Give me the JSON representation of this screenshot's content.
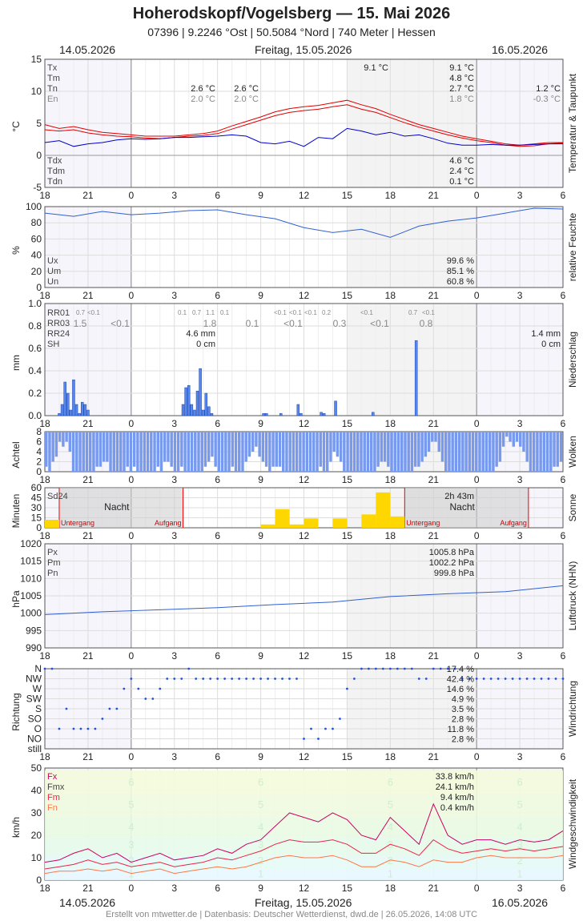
{
  "header": {
    "title": "Hoherodskopf/Vogelsberg  —  15. Mai 2026",
    "subtitle": "07396  |  9.2246 °Ost  |  50.5084 °Nord  |  740 Meter  |  Hessen",
    "date_left": "14.05.2026",
    "date_center": "Freitag, 15.05.2026",
    "date_right": "16.05.2026"
  },
  "footer": "Erstellt von mtwetter.de | Datenbasis: Deutscher Wetterdienst, dwd.de | 26.05.2026, 14:08 UTC",
  "x_ticks": [
    "18",
    "21",
    "0",
    "3",
    "6",
    "9",
    "12",
    "15",
    "18",
    "21",
    "0",
    "3",
    "6"
  ],
  "colors": {
    "tx": "#e00000",
    "td": "#0000cc",
    "hum": "#3060d0",
    "rain": "#5588ee",
    "cloud": "#7799ee",
    "sun": "#ffd700",
    "press": "#3060d0",
    "wind_dir": "#2050e0",
    "fx": "#cc0066",
    "fm": "#ee2244",
    "fn": "#ff7744"
  },
  "chart_data": [
    {
      "id": "temp",
      "type": "line",
      "ylabel": "°C",
      "side_label": "Temperatur & Taupunkt",
      "ylim": [
        -5,
        15
      ],
      "yticks": [
        "15",
        "10",
        "5",
        "0",
        "-5"
      ],
      "left_labels": [
        "Tx",
        "Tm",
        "Tn",
        "En"
      ],
      "left_labels_bottom": [
        "Tdx",
        "Tdm",
        "Tdn"
      ],
      "annotations": {
        "d1_tn": "2.6 °C",
        "d1_en": "2.0 °C",
        "d1b_tn": "2.6 °C",
        "d1b_en": "2.0 °C",
        "d2_txpeak": "9.1 °C",
        "d2_tx": "9.1 °C",
        "d2_tm": "4.8 °C",
        "d2_tn": "2.7 °C",
        "d2_en": "1.8 °C",
        "d3_tn": "1.2 °C",
        "d3_en": "-0.3 °C",
        "d2_tdx": "4.6 °C",
        "d2_tdm": "2.4 °C",
        "d2_tdn": "0.1 °C"
      },
      "series": [
        {
          "key": "temp",
          "x": [
            0,
            1,
            2,
            3,
            4,
            5,
            6,
            7,
            8,
            9,
            10,
            11,
            12,
            13,
            14,
            15,
            16,
            17,
            18,
            19,
            20,
            21,
            22,
            23,
            24,
            25,
            26,
            27,
            28,
            29,
            30,
            31,
            32,
            33,
            34,
            35,
            36
          ],
          "y": [
            4.8,
            4.2,
            4.5,
            4.0,
            3.6,
            3.4,
            3.2,
            3.0,
            3.0,
            3.0,
            3.2,
            3.4,
            3.8,
            4.6,
            5.3,
            6.0,
            6.8,
            7.3,
            7.6,
            7.8,
            8.2,
            8.6,
            7.9,
            7.3,
            6.4,
            5.6,
            4.8,
            4.2,
            3.6,
            3.0,
            2.6,
            2.2,
            1.8,
            1.6,
            1.8,
            2.0,
            2.0
          ]
        },
        {
          "key": "temp2",
          "x": [
            0,
            1,
            2,
            3,
            4,
            5,
            6,
            7,
            8,
            9,
            10,
            11,
            12,
            13,
            14,
            15,
            16,
            17,
            18,
            19,
            20,
            21,
            22,
            23,
            24,
            25,
            26,
            27,
            28,
            29,
            30,
            31,
            32,
            33,
            34,
            35,
            36
          ],
          "y": [
            4.0,
            3.8,
            4.0,
            3.5,
            3.2,
            3.0,
            2.9,
            2.7,
            2.6,
            2.8,
            3.0,
            3.1,
            3.4,
            4.1,
            4.8,
            5.5,
            6.2,
            6.7,
            7.0,
            7.2,
            7.6,
            7.9,
            7.2,
            6.7,
            5.9,
            5.1,
            4.4,
            3.8,
            3.2,
            2.7,
            2.3,
            2.0,
            1.6,
            1.4,
            1.5,
            1.8,
            1.9
          ]
        },
        {
          "key": "dew",
          "x": [
            0,
            1,
            2,
            3,
            4,
            5,
            6,
            7,
            8,
            9,
            10,
            11,
            12,
            13,
            14,
            15,
            16,
            17,
            18,
            19,
            20,
            21,
            22,
            23,
            24,
            25,
            26,
            27,
            28,
            29,
            30,
            31,
            32,
            33,
            34,
            35,
            36
          ],
          "y": [
            2.0,
            2.3,
            1.4,
            1.8,
            2.0,
            2.4,
            2.6,
            2.5,
            2.6,
            2.8,
            2.8,
            2.9,
            3.0,
            3.2,
            3.0,
            2.0,
            1.8,
            2.2,
            1.4,
            2.8,
            2.6,
            4.2,
            3.8,
            3.2,
            3.6,
            3.0,
            3.2,
            2.6,
            1.9,
            1.6,
            1.6,
            1.7,
            1.6,
            1.6,
            1.7,
            1.8,
            1.8
          ]
        }
      ]
    },
    {
      "id": "hum",
      "type": "line",
      "ylabel": "%",
      "side_label": "relative Feuchte",
      "ylim": [
        0,
        100
      ],
      "yticks": [
        "100",
        "80",
        "60",
        "40",
        "20",
        "0"
      ],
      "left_labels": [
        "Ux",
        "Um",
        "Un"
      ],
      "annotations": {
        "ux": "99.6 %",
        "um": "85.1 %",
        "un": "60.8 %"
      },
      "series": [
        {
          "key": "hum",
          "x": [
            0,
            2,
            4,
            6,
            8,
            10,
            12,
            14,
            16,
            18,
            20,
            22,
            24,
            26,
            28,
            30,
            32,
            34,
            36
          ],
          "y": [
            92,
            88,
            94,
            90,
            92,
            95,
            96,
            90,
            85,
            74,
            68,
            72,
            62,
            76,
            82,
            86,
            92,
            98,
            97
          ]
        }
      ]
    },
    {
      "id": "rain",
      "type": "bar",
      "ylabel": "mm",
      "side_label": "Niederschlag",
      "ylim": [
        0,
        1.0
      ],
      "yticks": [
        "1.0",
        "0.8",
        "0.6",
        "0.4",
        "0.2",
        "0.0"
      ],
      "left_labels": [
        "RR01",
        "RR03",
        "RR24",
        "SH"
      ],
      "annotations": {
        "rr24_d1": "4.6 mm",
        "sh_d1": "0 cm",
        "rr24_d3": "1.4 mm",
        "sh_d3": "0 cm"
      },
      "rr01_labels": [
        [
          "0.7",
          "<0.1"
        ],
        [
          "0.1",
          "0.7",
          "1.1",
          "0.1"
        ],
        [
          "<0.1",
          "<0.1",
          "<0.1",
          "0.2"
        ],
        [
          "<0.1"
        ],
        [
          "0.7",
          "<0.1"
        ]
      ],
      "rr03_labels": [
        "1.5",
        "<0.1",
        "1.8",
        "0.1",
        "<0.1",
        "0.3",
        "<0.1",
        "0.8"
      ],
      "x": [
        1.0,
        1.2,
        1.4,
        1.6,
        1.8,
        2.0,
        2.2,
        2.4,
        2.6,
        2.8,
        3.0,
        9.6,
        9.8,
        10.0,
        10.2,
        10.4,
        10.6,
        10.8,
        11.0,
        11.2,
        11.4,
        11.6,
        15.2,
        15.4,
        16.4,
        17.6,
        17.8,
        19.2,
        19.4,
        20.2,
        22.8,
        25.8
      ],
      "values": [
        0.02,
        0.1,
        0.3,
        0.2,
        0.05,
        0.32,
        0.1,
        0.02,
        0.12,
        0.1,
        0.05,
        0.1,
        0.25,
        0.27,
        0.1,
        0.05,
        0.22,
        0.42,
        0.05,
        0.2,
        0.08,
        0.02,
        0.02,
        0.02,
        0.02,
        0.1,
        0.02,
        0.03,
        0.02,
        0.13,
        0.03,
        0.67
      ]
    },
    {
      "id": "cloud",
      "type": "bar",
      "ylabel": "Achtel",
      "side_label": "Wolken",
      "ylim": [
        0,
        8
      ],
      "yticks": [
        "8",
        "6",
        "4",
        "2",
        "0"
      ],
      "values": [
        7,
        8,
        6,
        5,
        2,
        3,
        2,
        4,
        8,
        8,
        8,
        8,
        8,
        8,
        8,
        7,
        7,
        6,
        6,
        8,
        8,
        8,
        8,
        8,
        7,
        8,
        7,
        8,
        8,
        8,
        8,
        8,
        8,
        7,
        8,
        6,
        6,
        7,
        8,
        8,
        7,
        8,
        8,
        8,
        8,
        8,
        8,
        7,
        6,
        5,
        7,
        8,
        8,
        8,
        8,
        7,
        8,
        8,
        8,
        6,
        5,
        4,
        3,
        5,
        6,
        7,
        8,
        7,
        7,
        7,
        8,
        8,
        8,
        8,
        8,
        8,
        8,
        8,
        8,
        8,
        8,
        7,
        8,
        8,
        6,
        4,
        5,
        6,
        8,
        8,
        8,
        8,
        8,
        8,
        8,
        8,
        8,
        8,
        7,
        6,
        6,
        7,
        8,
        8,
        8,
        8,
        8,
        8,
        8,
        7,
        7,
        6,
        5,
        4,
        2,
        2,
        4,
        6,
        8,
        8,
        8,
        8,
        8,
        8,
        8,
        8,
        8,
        8,
        8,
        8,
        8,
        8,
        8,
        7,
        6,
        3,
        1,
        2,
        3,
        2,
        3,
        4,
        6,
        8,
        8,
        8,
        8,
        8,
        8,
        8,
        7,
        7,
        6
      ]
    },
    {
      "id": "sun",
      "type": "bar",
      "ylabel": "Minuten",
      "side_label": "Sonne",
      "ylim": [
        0,
        60
      ],
      "yticks": [
        "60",
        "45",
        "30",
        "15",
        "0"
      ],
      "annotations": {
        "sd24": "Sd24",
        "night": "Nacht",
        "night2": "Nacht",
        "sunset": "Untergang",
        "sunrise": "Aufgang",
        "sunset2": "Untergang",
        "sunrise2": "Aufgang",
        "total": "2h 43m"
      },
      "x": [
        0,
        15,
        16,
        17,
        18,
        19,
        20,
        21,
        22,
        23,
        24,
        25,
        26,
        27
      ],
      "values": [
        12,
        5,
        28,
        5,
        14,
        0,
        14,
        0,
        20,
        53,
        17,
        0,
        0,
        0
      ]
    },
    {
      "id": "press",
      "type": "line",
      "ylabel": "hPa",
      "side_label": "Luftdruck (NHN)",
      "ylim": [
        990,
        1020
      ],
      "yticks": [
        "1020",
        "1015",
        "1010",
        "1005",
        "1000",
        "995",
        "990"
      ],
      "left_labels": [
        "Px",
        "Pm",
        "Pn"
      ],
      "annotations": {
        "px": "1005.8 hPa",
        "pm": "1002.2 hPa",
        "pn": "999.8 hPa"
      },
      "series": [
        {
          "key": "press",
          "x": [
            0,
            4,
            8,
            12,
            16,
            20,
            24,
            28,
            32,
            36
          ],
          "y": [
            999.6,
            1000.4,
            1001.0,
            1001.6,
            1002.5,
            1003.2,
            1004.8,
            1005.6,
            1006.2,
            1007.9
          ]
        }
      ]
    },
    {
      "id": "wdir",
      "type": "scatter",
      "ylabel": "Richtung",
      "side_label": "Windrichtung",
      "yticks": [
        "N",
        "NW",
        "W",
        "SW",
        "S",
        "SO",
        "O",
        "NO",
        "still"
      ],
      "pct": [
        "17.4 %",
        "42.4 %",
        "14.6 %",
        "4.9 %",
        "3.5 %",
        "2.8 %",
        "11.8 %",
        "2.8 %"
      ],
      "series": [
        {
          "key": "wdir",
          "x": [
            0,
            0.5,
            1,
            1.5,
            2,
            2.5,
            3,
            3.5,
            4,
            4.5,
            5,
            5.5,
            6,
            6.5,
            7,
            7.5,
            8,
            8.5,
            9,
            9.5,
            10,
            10.5,
            11,
            11.5,
            12,
            12.5,
            13,
            13.5,
            14,
            14.5,
            15,
            15.5,
            16,
            16.5,
            17,
            17.5,
            18,
            18.5,
            19,
            19.5,
            20,
            20.5,
            21,
            21.5,
            22,
            22.5,
            23,
            23.5,
            24,
            24.5,
            25,
            25.5,
            26,
            26.5,
            27,
            27.5,
            28,
            28.5,
            29,
            29.5,
            30,
            30.5,
            31,
            31.5,
            32,
            32.5,
            33,
            33.5,
            34,
            34.5,
            35,
            35.5,
            36
          ],
          "y": [
            8,
            8,
            2,
            4,
            2,
            2,
            2,
            2,
            3,
            4,
            4,
            6,
            7,
            6,
            5,
            5,
            6,
            7,
            7,
            7,
            8,
            7,
            7,
            7,
            7,
            7,
            7,
            7,
            7,
            7,
            7,
            7,
            7,
            7,
            7,
            7,
            1,
            2,
            1,
            2,
            2,
            3,
            6,
            7,
            8,
            8,
            8,
            8,
            8,
            8,
            8,
            8,
            7,
            7,
            8,
            8,
            8,
            8,
            7,
            7,
            7,
            7,
            7,
            7,
            7,
            7,
            7,
            7,
            7,
            7,
            7,
            7,
            7
          ]
        }
      ]
    },
    {
      "id": "wind",
      "type": "line",
      "ylabel": "km/h",
      "side_label": "Windgeschwindigkeit",
      "ylim": [
        0,
        50
      ],
      "yticks": [
        "50",
        "40",
        "30",
        "20",
        "10",
        "0"
      ],
      "left_labels": [
        "Fx",
        "Fmx",
        "Fm",
        "Fn"
      ],
      "annotations": {
        "fx": "33.8 km/h",
        "fmx": "24.1 km/h",
        "fm": "9.4 km/h",
        "fn": "0.4 km/h"
      },
      "bft": [
        "6",
        "5",
        "4",
        "3",
        "2",
        "1"
      ],
      "series": [
        {
          "key": "fx",
          "x": [
            0,
            1,
            2,
            3,
            4,
            5,
            6,
            7,
            8,
            9,
            10,
            11,
            12,
            13,
            14,
            15,
            16,
            17,
            18,
            19,
            20,
            21,
            22,
            23,
            24,
            25,
            26,
            27,
            28,
            29,
            30,
            31,
            32,
            33,
            34,
            35,
            36
          ],
          "y": [
            8,
            9,
            12,
            14,
            10,
            12,
            8,
            10,
            12,
            9,
            10,
            11,
            14,
            12,
            16,
            18,
            24,
            30,
            28,
            26,
            30,
            27,
            20,
            18,
            28,
            22,
            16,
            34,
            20,
            16,
            18,
            18,
            16,
            18,
            17,
            18,
            22
          ]
        },
        {
          "key": "fm",
          "x": [
            0,
            1,
            2,
            3,
            4,
            5,
            6,
            7,
            8,
            9,
            10,
            11,
            12,
            13,
            14,
            15,
            16,
            17,
            18,
            19,
            20,
            21,
            22,
            23,
            24,
            25,
            26,
            27,
            28,
            29,
            30,
            31,
            32,
            33,
            34,
            35,
            36
          ],
          "y": [
            5,
            6,
            7,
            9,
            7,
            8,
            6,
            7,
            8,
            6,
            7,
            8,
            10,
            9,
            11,
            13,
            16,
            18,
            17,
            17,
            18,
            16,
            12,
            12,
            16,
            14,
            11,
            18,
            14,
            12,
            13,
            14,
            13,
            14,
            13,
            14,
            15
          ]
        },
        {
          "key": "fn",
          "x": [
            0,
            1,
            2,
            3,
            4,
            5,
            6,
            7,
            8,
            9,
            10,
            11,
            12,
            13,
            14,
            15,
            16,
            17,
            18,
            19,
            20,
            21,
            22,
            23,
            24,
            25,
            26,
            27,
            28,
            29,
            30,
            31,
            32,
            33,
            34,
            35,
            36
          ],
          "y": [
            3,
            4,
            4,
            5,
            4,
            5,
            3,
            4,
            5,
            3,
            4,
            5,
            6,
            5,
            6,
            8,
            10,
            11,
            10,
            10,
            11,
            9,
            6,
            6,
            9,
            8,
            6,
            9,
            8,
            8,
            10,
            11,
            10,
            10,
            10,
            10,
            11
          ]
        }
      ]
    }
  ]
}
